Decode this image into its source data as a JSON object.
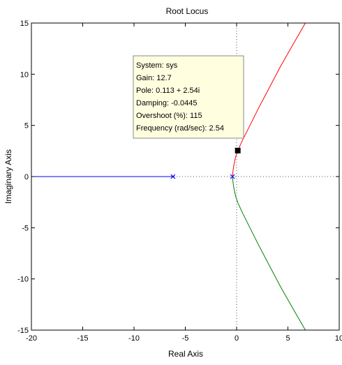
{
  "chart_data": {
    "type": "line",
    "title": "Root Locus",
    "xlabel": "Real Axis",
    "ylabel": "Imaginary Axis",
    "xlim": [
      -20,
      10
    ],
    "ylim": [
      -15,
      15
    ],
    "xticks": [
      -20,
      -15,
      -10,
      -5,
      0,
      5,
      10
    ],
    "xtick_labels": [
      "-20",
      "-15",
      "-10",
      "-5",
      "0",
      "5",
      "10"
    ],
    "yticks": [
      -15,
      -10,
      -5,
      0,
      5,
      10,
      15
    ],
    "ytick_labels": [
      "-15",
      "-10",
      "-5",
      "0",
      "5",
      "10",
      "15"
    ],
    "grid": false,
    "poles": [
      {
        "x": -6.2,
        "y": 0
      },
      {
        "x": -0.4,
        "y": 0
      }
    ],
    "series": [
      {
        "color": "#0000ff",
        "x": [
          -20,
          -6.2
        ],
        "y": [
          0,
          0
        ]
      },
      {
        "color": "#ff0000",
        "x": [
          -0.4,
          -0.35,
          -0.25,
          -0.1,
          0.113,
          0.6,
          1.3,
          2.2,
          3.2,
          4.3,
          5.5,
          6.7
        ],
        "y": [
          0,
          0.6,
          1.2,
          1.9,
          2.54,
          3.6,
          5.0,
          6.8,
          8.7,
          10.8,
          12.9,
          15
        ]
      },
      {
        "color": "#008000",
        "x": [
          -0.4,
          -0.35,
          -0.25,
          -0.1,
          0.113,
          0.6,
          1.3,
          2.2,
          3.2,
          4.3,
          5.5,
          6.7
        ],
        "y": [
          0,
          -0.6,
          -1.2,
          -1.9,
          -2.54,
          -3.6,
          -5.0,
          -6.8,
          -8.7,
          -10.8,
          -12.9,
          -15
        ]
      }
    ],
    "reference_lines": {
      "x": 0,
      "y": 0,
      "style": "dotted"
    },
    "selected_point": {
      "x": 0.113,
      "y": 2.54
    },
    "datatip": {
      "lines": [
        "System: sys",
        "Gain: 12.7",
        "Pole: 0.113 + 2.54i",
        "Damping: -0.0445",
        "Overshoot (%): 115",
        "Frequency (rad/sec): 2.54"
      ],
      "background": "#ffffe0"
    }
  }
}
